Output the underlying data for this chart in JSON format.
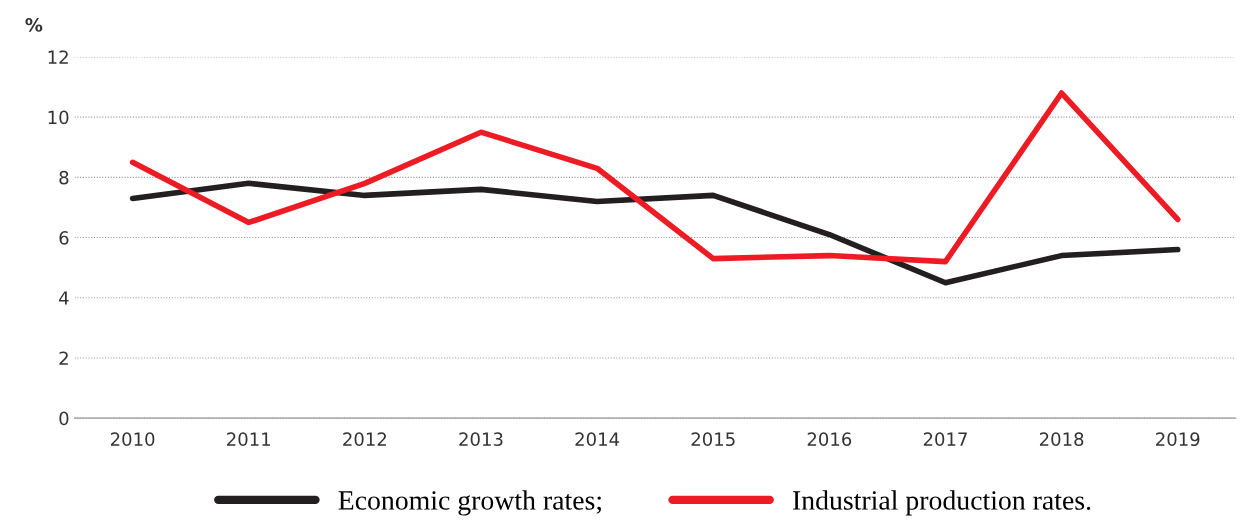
{
  "chart_data": {
    "type": "line",
    "ylabel": "%",
    "categories": [
      "2010",
      "2011",
      "2012",
      "2013",
      "2014",
      "2015",
      "2016",
      "2017",
      "2018",
      "2019"
    ],
    "series": [
      {
        "name": "Economic growth rates;",
        "color": "#231f20",
        "values": [
          7.3,
          7.8,
          7.4,
          7.6,
          7.2,
          7.4,
          6.1,
          4.5,
          5.4,
          5.6
        ]
      },
      {
        "name": "Industrial production rates.",
        "color": "#ed1c24",
        "values": [
          8.5,
          6.5,
          7.8,
          9.5,
          8.3,
          5.3,
          5.4,
          5.2,
          10.8,
          6.6
        ]
      }
    ],
    "ylim": [
      0,
      12
    ],
    "yticks": [
      0,
      2,
      4,
      6,
      8,
      10,
      12
    ],
    "grid": "y",
    "legend": "bottom",
    "marker": "none",
    "line_style": "solid"
  }
}
